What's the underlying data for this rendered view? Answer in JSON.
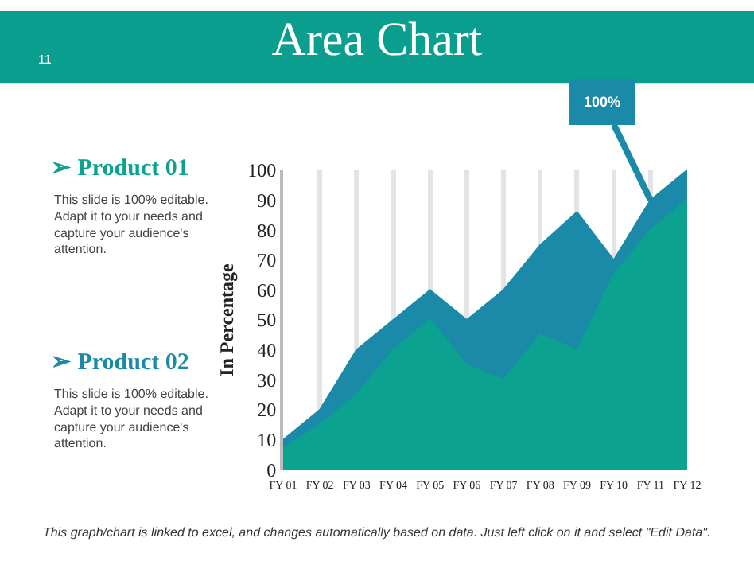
{
  "chart_data": {
    "type": "area",
    "title": "Area Chart",
    "categories": [
      "FY 01",
      "FY 02",
      "FY 03",
      "FY 04",
      "FY 05",
      "FY 06",
      "FY 07",
      "FY 08",
      "FY 09",
      "FY 10",
      "FY 11",
      "FY 12"
    ],
    "series": [
      {
        "name": "➢ Product 02",
        "color": "#1b8aa8",
        "values": [
          10,
          20,
          40,
          50,
          60,
          50,
          60,
          75,
          86,
          70,
          90,
          100
        ]
      },
      {
        "name": "➢ Product 01",
        "color": "#0ba38f",
        "values": [
          7,
          15,
          25,
          40,
          50,
          35,
          30,
          45,
          40,
          65,
          80,
          90
        ]
      }
    ],
    "ylabel": "In Percentage",
    "ylim": [
      0,
      100
    ],
    "yticks": [
      0,
      10,
      20,
      30,
      40,
      50,
      60,
      70,
      80,
      90,
      100
    ],
    "grid": "x",
    "legend": false,
    "annotations": [
      "11",
      "This slide is 100% editable. Adapt it to your needs and capture your audience's attention.",
      "This slide is 100% editable. Adapt it to your needs and capture your audience's attention.",
      "This graph/chart is linked to excel, and changes automatically based on data. Just left click on it and select \"Edit Data\".",
      {
        "text": "100%",
        "x": "FY 11",
        "y": 90
      }
    ]
  }
}
